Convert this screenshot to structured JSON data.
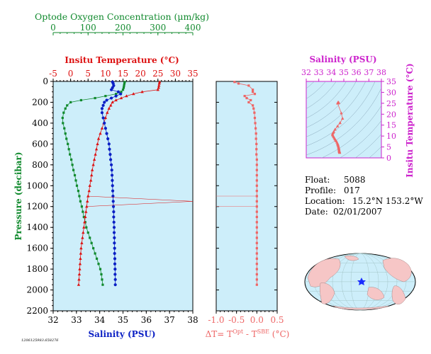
{
  "panel_labels": {
    "oxygen_axis_title": "Optode Oxygen Concentration (µm/kg)",
    "temp_axis_title": "Insitu Temperature (°C)",
    "pressure_axis_title": "Pressure (decibar)",
    "salinity_axis_title": "Salinity (PSU)",
    "dt_axis_title": "ΔT= T",
    "dt_sup1": "Opt",
    "dt_mid": " - T",
    "dt_sup2": "SBE",
    "dt_unit": " (°C)",
    "ts_salinity_title": "Salinity (PSU)",
    "ts_temp_title": "Insitu Temperature (°C)",
    "footer_id": "1206125983.658276"
  },
  "float_info": {
    "float_label": "Float:",
    "float_value": "5088",
    "profile_label": "Profile:",
    "profile_value": "017",
    "location_label": "Location:",
    "location_value": "15.2°N  153.2°W",
    "date_label": "Date:",
    "date_value": "02/01/2007"
  },
  "colors": {
    "oxygen": "#118a2e",
    "temperature": "#dd1111",
    "salinity": "#0a1fc4",
    "dt": "#ee6666",
    "ts": "#cc22cc",
    "plot_bg": "#cdeefa"
  },
  "chart_data": [
    {
      "type": "line",
      "name": "main-profile",
      "y_axis": {
        "label": "Pressure (decibar)",
        "range": [
          2200,
          0
        ],
        "ticks": [
          0,
          200,
          400,
          600,
          800,
          1000,
          1200,
          1400,
          1600,
          1800,
          2000,
          2200
        ]
      },
      "top_axis_oxygen": {
        "range": [
          0,
          400
        ],
        "ticks": [
          0,
          100,
          200,
          300,
          400
        ]
      },
      "top_axis_temperature": {
        "range": [
          -5,
          35
        ],
        "ticks": [
          -5,
          0,
          5,
          10,
          15,
          20,
          25,
          30,
          35
        ]
      },
      "bottom_axis_salinity": {
        "range": [
          32,
          38
        ],
        "ticks": [
          32,
          33,
          34,
          35,
          36,
          37,
          38
        ]
      },
      "series": [
        {
          "name": "Oxygen",
          "x_axis": "oxygen",
          "points": [
            [
              205,
              5
            ],
            [
              204,
              20
            ],
            [
              203,
              40
            ],
            [
              202,
              60
            ],
            [
              200,
              80
            ],
            [
              195,
              100
            ],
            [
              180,
              120
            ],
            [
              150,
              140
            ],
            [
              120,
              160
            ],
            [
              80,
              180
            ],
            [
              50,
              200
            ],
            [
              40,
              230
            ],
            [
              35,
              260
            ],
            [
              30,
              300
            ],
            [
              27,
              350
            ],
            [
              28,
              400
            ],
            [
              32,
              450
            ],
            [
              35,
              500
            ],
            [
              38,
              550
            ],
            [
              42,
              600
            ],
            [
              45,
              650
            ],
            [
              48,
              700
            ],
            [
              52,
              750
            ],
            [
              55,
              800
            ],
            [
              58,
              850
            ],
            [
              62,
              900
            ],
            [
              65,
              950
            ],
            [
              68,
              1000
            ],
            [
              72,
              1050
            ],
            [
              75,
              1100
            ],
            [
              78,
              1150
            ],
            [
              82,
              1200
            ],
            [
              85,
              1250
            ],
            [
              88,
              1300
            ],
            [
              92,
              1350
            ],
            [
              95,
              1400
            ],
            [
              100,
              1450
            ],
            [
              105,
              1500
            ],
            [
              110,
              1550
            ],
            [
              115,
              1600
            ],
            [
              120,
              1650
            ],
            [
              125,
              1700
            ],
            [
              130,
              1750
            ],
            [
              135,
              1800
            ],
            [
              138,
              1850
            ],
            [
              140,
              1900
            ],
            [
              142,
              1950
            ]
          ]
        },
        {
          "name": "Temperature",
          "x_axis": "temperature",
          "points": [
            [
              25.5,
              5
            ],
            [
              25.4,
              20
            ],
            [
              25.3,
              40
            ],
            [
              25.2,
              60
            ],
            [
              25.0,
              80
            ],
            [
              20.5,
              100
            ],
            [
              18.0,
              120
            ],
            [
              16.0,
              140
            ],
            [
              14.5,
              160
            ],
            [
              13.0,
              180
            ],
            [
              12.0,
              200
            ],
            [
              11.5,
              230
            ],
            [
              11.0,
              260
            ],
            [
              10.5,
              300
            ],
            [
              10.0,
              350
            ],
            [
              9.5,
              400
            ],
            [
              9.0,
              450
            ],
            [
              8.5,
              500
            ],
            [
              8.0,
              550
            ],
            [
              7.7,
              600
            ],
            [
              7.4,
              650
            ],
            [
              7.1,
              700
            ],
            [
              6.8,
              750
            ],
            [
              6.5,
              800
            ],
            [
              6.2,
              850
            ],
            [
              6.0,
              900
            ],
            [
              5.8,
              950
            ],
            [
              5.5,
              1000
            ],
            [
              5.3,
              1050
            ],
            [
              5.0,
              1100
            ],
            [
              4.8,
              1150
            ],
            [
              4.6,
              1200
            ],
            [
              4.4,
              1250
            ],
            [
              4.2,
              1300
            ],
            [
              4.0,
              1350
            ],
            [
              3.8,
              1400
            ],
            [
              3.6,
              1450
            ],
            [
              3.4,
              1500
            ],
            [
              3.2,
              1550
            ],
            [
              3.0,
              1600
            ],
            [
              2.9,
              1650
            ],
            [
              2.8,
              1700
            ],
            [
              2.7,
              1750
            ],
            [
              2.6,
              1800
            ],
            [
              2.5,
              1850
            ],
            [
              2.4,
              1900
            ],
            [
              2.3,
              1950
            ]
          ]
        },
        {
          "name": "Salinity",
          "x_axis": "salinity",
          "points": [
            [
              34.55,
              5
            ],
            [
              34.58,
              20
            ],
            [
              34.6,
              40
            ],
            [
              34.55,
              60
            ],
            [
              34.5,
              80
            ],
            [
              34.8,
              100
            ],
            [
              34.9,
              120
            ],
            [
              34.7,
              140
            ],
            [
              34.5,
              160
            ],
            [
              34.3,
              180
            ],
            [
              34.2,
              200
            ],
            [
              34.15,
              230
            ],
            [
              34.1,
              260
            ],
            [
              34.1,
              300
            ],
            [
              34.15,
              350
            ],
            [
              34.2,
              400
            ],
            [
              34.25,
              450
            ],
            [
              34.3,
              500
            ],
            [
              34.35,
              550
            ],
            [
              34.4,
              600
            ],
            [
              34.42,
              650
            ],
            [
              34.45,
              700
            ],
            [
              34.47,
              750
            ],
            [
              34.5,
              800
            ],
            [
              34.52,
              850
            ],
            [
              34.53,
              900
            ],
            [
              34.54,
              950
            ],
            [
              34.55,
              1000
            ],
            [
              34.56,
              1050
            ],
            [
              34.57,
              1100
            ],
            [
              34.58,
              1150
            ],
            [
              34.59,
              1200
            ],
            [
              34.6,
              1250
            ],
            [
              34.6,
              1300
            ],
            [
              34.61,
              1350
            ],
            [
              34.62,
              1400
            ],
            [
              34.62,
              1450
            ],
            [
              34.63,
              1500
            ],
            [
              34.63,
              1550
            ],
            [
              34.64,
              1600
            ],
            [
              34.64,
              1650
            ],
            [
              34.65,
              1700
            ],
            [
              34.65,
              1750
            ],
            [
              34.66,
              1800
            ],
            [
              34.66,
              1850
            ],
            [
              34.67,
              1900
            ],
            [
              34.67,
              1950
            ]
          ]
        }
      ],
      "spikes": [
        {
          "series": "Temperature",
          "pressure": 1100,
          "x": 4.8
        },
        {
          "series": "Temperature",
          "pressure": 1150,
          "x": 35
        },
        {
          "series": "Temperature",
          "pressure": 1200,
          "x": 4.4
        }
      ]
    },
    {
      "type": "line",
      "name": "delta-t",
      "x_axis": {
        "label": "ΔT= TOpt - TSBE (°C)",
        "range": [
          -1.0,
          0.5
        ],
        "ticks": [
          -1.0,
          -0.5,
          0.0,
          0.5
        ]
      },
      "y_axis": {
        "range": [
          2200,
          0
        ]
      },
      "points": [
        [
          -0.55,
          5
        ],
        [
          -0.45,
          20
        ],
        [
          -0.2,
          40
        ],
        [
          -0.1,
          80
        ],
        [
          -0.1,
          100
        ],
        [
          -0.05,
          120
        ],
        [
          -0.3,
          140
        ],
        [
          -0.25,
          160
        ],
        [
          -0.15,
          180
        ],
        [
          -0.2,
          200
        ],
        [
          -0.1,
          230
        ],
        [
          -0.08,
          260
        ],
        [
          -0.06,
          300
        ],
        [
          -0.05,
          350
        ],
        [
          -0.04,
          400
        ],
        [
          -0.03,
          450
        ],
        [
          -0.02,
          500
        ],
        [
          -0.02,
          550
        ],
        [
          -0.01,
          600
        ],
        [
          -0.01,
          650
        ],
        [
          -0.01,
          700
        ],
        [
          0,
          750
        ],
        [
          0,
          800
        ],
        [
          0,
          850
        ],
        [
          0,
          900
        ],
        [
          0,
          950
        ],
        [
          0,
          1000
        ],
        [
          0,
          1050
        ],
        [
          0,
          1100
        ],
        [
          0,
          1150
        ],
        [
          0,
          1200
        ],
        [
          0,
          1250
        ],
        [
          0,
          1300
        ],
        [
          0,
          1350
        ],
        [
          0,
          1400
        ],
        [
          0,
          1450
        ],
        [
          0,
          1500
        ],
        [
          0,
          1550
        ],
        [
          0,
          1600
        ],
        [
          0,
          1650
        ],
        [
          0,
          1700
        ],
        [
          0,
          1750
        ],
        [
          0,
          1800
        ],
        [
          0,
          1850
        ],
        [
          0,
          1900
        ],
        [
          0,
          1950
        ]
      ],
      "spikes": [
        {
          "pressure": 1100,
          "x": -1.0
        },
        {
          "pressure": 1200,
          "x": -1.0
        }
      ]
    },
    {
      "type": "scatter",
      "name": "t-s-diagram",
      "x_axis": {
        "label": "Salinity (PSU)",
        "range": [
          32,
          38
        ],
        "ticks": [
          32,
          33,
          34,
          35,
          36,
          37,
          38
        ]
      },
      "y_axis": {
        "label": "Insitu Temperature (°C)",
        "range": [
          0,
          35
        ],
        "ticks": [
          0,
          5,
          10,
          15,
          20,
          25,
          30,
          35
        ]
      },
      "points": [
        [
          34.55,
          25.5
        ],
        [
          34.6,
          25.2
        ],
        [
          34.5,
          25.0
        ],
        [
          34.8,
          20.5
        ],
        [
          34.9,
          18.0
        ],
        [
          34.7,
          16.0
        ],
        [
          34.5,
          14.5
        ],
        [
          34.3,
          13.0
        ],
        [
          34.2,
          12.0
        ],
        [
          34.15,
          11.5
        ],
        [
          34.1,
          11.0
        ],
        [
          34.1,
          10.5
        ],
        [
          34.15,
          10.0
        ],
        [
          34.2,
          9.5
        ],
        [
          34.25,
          9.0
        ],
        [
          34.3,
          8.5
        ],
        [
          34.35,
          8.0
        ],
        [
          34.4,
          7.7
        ],
        [
          34.45,
          7.1
        ],
        [
          34.5,
          6.5
        ],
        [
          34.52,
          6.2
        ],
        [
          34.54,
          5.8
        ],
        [
          34.56,
          5.3
        ],
        [
          34.58,
          4.8
        ],
        [
          34.6,
          4.4
        ],
        [
          34.61,
          4.0
        ],
        [
          34.62,
          3.6
        ],
        [
          34.63,
          3.2
        ],
        [
          34.64,
          3.0
        ],
        [
          34.65,
          2.8
        ],
        [
          34.66,
          2.6
        ],
        [
          34.67,
          2.4
        ]
      ]
    }
  ],
  "map": {
    "marker_lat": 15.2,
    "marker_lon": -153.2
  }
}
